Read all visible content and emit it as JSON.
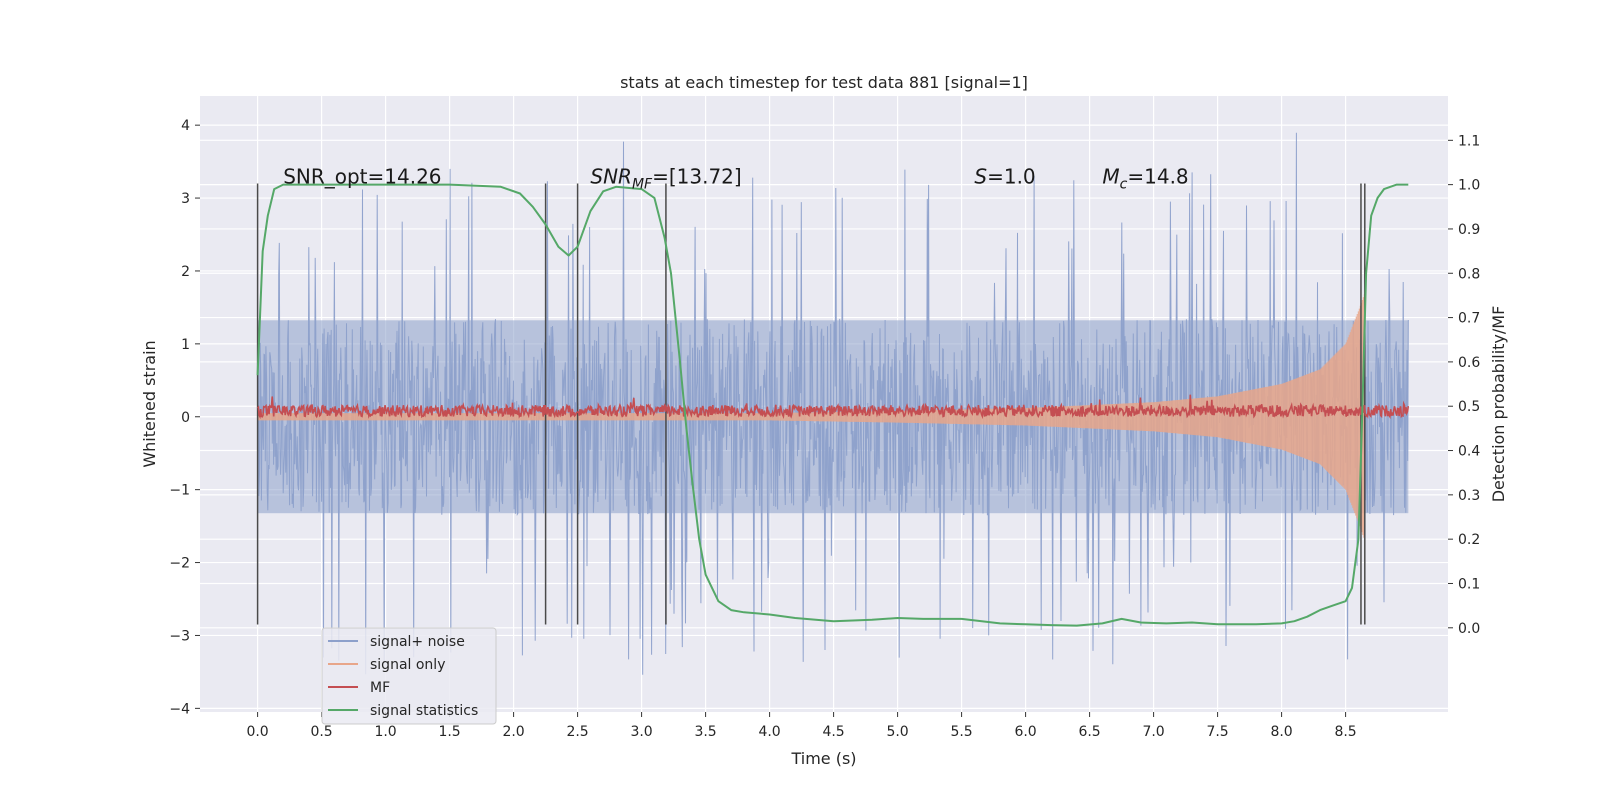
{
  "chart_data": {
    "type": "line",
    "title": "stats at each timestep for test data 881 [signal=1]",
    "xlabel": "Time (s)",
    "ylabel": "Whitened strain",
    "ylabel_right": "Detection probability/MF",
    "xlim": [
      -0.45,
      9.3
    ],
    "ylim": [
      -4.05,
      4.4
    ],
    "ylim_right": [
      -0.19,
      1.2
    ],
    "x_ticks": [
      0.0,
      0.5,
      1.0,
      1.5,
      2.0,
      2.5,
      3.0,
      3.5,
      4.0,
      4.5,
      5.0,
      5.5,
      6.0,
      6.5,
      7.0,
      7.5,
      8.0,
      8.5
    ],
    "x_tick_labels": [
      "0.0",
      "0.5",
      "1.0",
      "1.5",
      "2.0",
      "2.5",
      "3.0",
      "3.5",
      "4.0",
      "4.5",
      "5.0",
      "5.5",
      "6.0",
      "6.5",
      "7.0",
      "7.5",
      "8.0",
      "8.5"
    ],
    "y_ticks": [
      4,
      3,
      2,
      1,
      0,
      -1,
      -2,
      -3,
      -4
    ],
    "y_tick_labels": [
      "4",
      "3",
      "2",
      "1",
      "0",
      "−1",
      "−2",
      "−3",
      "−4"
    ],
    "y_right_ticks": [
      1.1,
      1.0,
      0.9,
      0.8,
      0.7,
      0.6,
      0.5,
      0.4,
      0.3,
      0.2,
      0.1,
      0.0
    ],
    "y_right_tick_labels": [
      "1.1",
      "1.0",
      "0.9",
      "0.8",
      "0.7",
      "0.6",
      "0.5",
      "0.4",
      "0.3",
      "0.2",
      "0.1",
      "0.0"
    ],
    "grid": true,
    "legend": {
      "placement": "lower-left",
      "entries": [
        {
          "label": "signal+ noise",
          "color": "#8da0cb"
        },
        {
          "label": "signal only",
          "color": "#e8a68a"
        },
        {
          "label": "MF",
          "color": "#c44e52"
        },
        {
          "label": "signal statistics",
          "color": "#55a868"
        }
      ]
    },
    "annotations": [
      {
        "text": "SNR_opt=14.26",
        "x": 0.2,
        "y": 3.2
      },
      {
        "text": "SNR",
        "sub": "MF",
        "suffix": "=[13.72]",
        "x": 2.6,
        "y": 3.2,
        "italic": true
      },
      {
        "text": "S",
        "suffix": "=1.0",
        "x": 5.6,
        "y": 3.2,
        "italic": true
      },
      {
        "text": "M",
        "sub": "c",
        "suffix": "=14.8",
        "x": 6.6,
        "y": 3.2,
        "italic": true
      }
    ],
    "vertical_markers": [
      {
        "x": 0.0,
        "y_bottom": -2.85,
        "y_top": 3.2
      },
      {
        "x": 2.25,
        "y_bottom": -2.85,
        "y_top": 3.2
      },
      {
        "x": 2.5,
        "y_bottom": -2.85,
        "y_top": 3.2
      },
      {
        "x": 3.19,
        "y_bottom": -2.85,
        "y_top": 3.2
      },
      {
        "x": 8.62,
        "y_bottom": -2.85,
        "y_top": 3.2
      },
      {
        "x": 8.65,
        "y_bottom": -2.85,
        "y_top": 3.2
      }
    ],
    "series": [
      {
        "name": "signal+ noise",
        "axis": "left",
        "color": "#8da0cb",
        "x_range": [
          0.0,
          8.99
        ],
        "sample_count": 1800,
        "core_amplitude": 1.35,
        "spike_amplitude_max": 4.0,
        "spike_amplitude_min": -3.7
      },
      {
        "name": "signal only",
        "axis": "left",
        "color": "#e8a68a",
        "x_range": [
          0.0,
          8.65
        ],
        "envelope_x": [
          0.0,
          4.0,
          5.0,
          6.0,
          7.0,
          7.5,
          8.0,
          8.3,
          8.5,
          8.6,
          8.65
        ],
        "envelope_amplitude": [
          0.05,
          0.05,
          0.08,
          0.12,
          0.2,
          0.28,
          0.45,
          0.65,
          1.0,
          1.45,
          1.7
        ]
      },
      {
        "name": "MF",
        "axis": "left",
        "color": "#c44e52",
        "x_range": [
          0.0,
          8.99
        ],
        "baseline": 0.08,
        "noise_amplitude": 0.08
      },
      {
        "name": "signal statistics",
        "axis": "right",
        "color": "#55a868",
        "x": [
          0.0,
          0.04,
          0.08,
          0.13,
          0.2,
          0.4,
          1.0,
          1.5,
          1.9,
          2.05,
          2.15,
          2.25,
          2.35,
          2.43,
          2.5,
          2.6,
          2.7,
          2.8,
          3.0,
          3.1,
          3.18,
          3.23,
          3.3,
          3.35,
          3.4,
          3.45,
          3.5,
          3.6,
          3.7,
          3.8,
          4.0,
          4.2,
          4.5,
          4.8,
          5.0,
          5.2,
          5.5,
          5.8,
          6.0,
          6.2,
          6.4,
          6.6,
          6.75,
          6.9,
          7.1,
          7.3,
          7.5,
          7.8,
          8.0,
          8.1,
          8.2,
          8.3,
          8.4,
          8.5,
          8.55,
          8.6,
          8.63,
          8.66,
          8.7,
          8.75,
          8.8,
          8.9,
          8.99
        ],
        "y": [
          0.57,
          0.85,
          0.93,
          0.99,
          1.0,
          1.0,
          1.0,
          1.0,
          0.995,
          0.98,
          0.95,
          0.91,
          0.86,
          0.84,
          0.86,
          0.94,
          0.985,
          0.995,
          0.99,
          0.97,
          0.88,
          0.8,
          0.6,
          0.45,
          0.32,
          0.2,
          0.12,
          0.06,
          0.04,
          0.035,
          0.03,
          0.022,
          0.015,
          0.018,
          0.022,
          0.02,
          0.02,
          0.01,
          0.008,
          0.006,
          0.005,
          0.01,
          0.02,
          0.012,
          0.01,
          0.012,
          0.008,
          0.008,
          0.01,
          0.015,
          0.025,
          0.04,
          0.05,
          0.06,
          0.09,
          0.2,
          0.48,
          0.8,
          0.93,
          0.97,
          0.99,
          1.0,
          1.0
        ]
      }
    ]
  }
}
